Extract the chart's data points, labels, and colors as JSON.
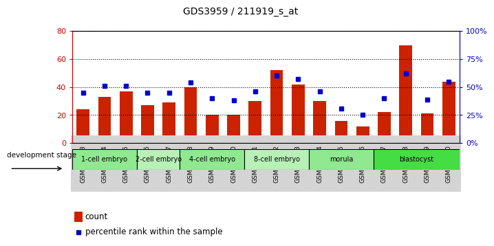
{
  "title": "GDS3959 / 211919_s_at",
  "samples": [
    "GSM456643",
    "GSM456644",
    "GSM456645",
    "GSM456646",
    "GSM456647",
    "GSM456648",
    "GSM456649",
    "GSM456650",
    "GSM456651",
    "GSM456652",
    "GSM456653",
    "GSM456654",
    "GSM456655",
    "GSM456656",
    "GSM456657",
    "GSM456658",
    "GSM456659",
    "GSM456660"
  ],
  "counts": [
    24,
    33,
    37,
    27,
    29,
    40,
    20,
    20,
    30,
    52,
    42,
    30,
    16,
    12,
    22,
    70,
    21,
    44
  ],
  "percentiles": [
    45,
    51,
    51,
    45,
    45,
    54,
    40,
    38,
    46,
    60,
    57,
    46,
    31,
    25,
    40,
    62,
    39,
    55
  ],
  "stages": [
    {
      "label": "1-cell embryo",
      "start": 0,
      "end": 3,
      "color": "#90e890"
    },
    {
      "label": "2-cell embryo",
      "start": 3,
      "end": 5,
      "color": "#b8f0b8"
    },
    {
      "label": "4-cell embryo",
      "start": 5,
      "end": 8,
      "color": "#90e890"
    },
    {
      "label": "8-cell embryo",
      "start": 8,
      "end": 11,
      "color": "#b8f0b8"
    },
    {
      "label": "morula",
      "start": 11,
      "end": 14,
      "color": "#90e890"
    },
    {
      "label": "blastocyst",
      "start": 14,
      "end": 18,
      "color": "#44dd44"
    }
  ],
  "bar_color": "#cc2200",
  "dot_color": "#0000cc",
  "ylim_left": [
    0,
    80
  ],
  "ylim_right": [
    0,
    100
  ],
  "yticks_left": [
    0,
    20,
    40,
    60,
    80
  ],
  "yticks_right": [
    0,
    25,
    50,
    75,
    100
  ],
  "tick_label_bg": "#d4d4d4",
  "title_fontsize": 10,
  "axis_label_color_left": "#cc0000",
  "axis_label_color_right": "#0000cc"
}
